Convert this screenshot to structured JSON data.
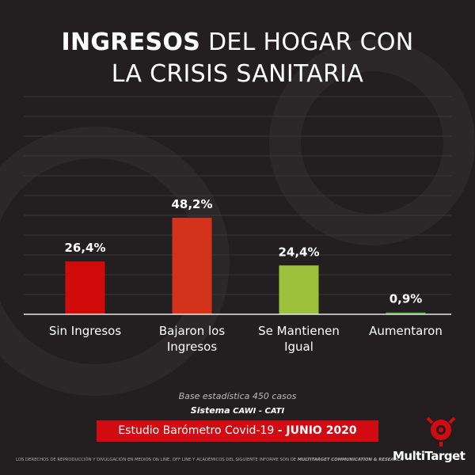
{
  "chart_data": {
    "type": "bar",
    "title_bold": "INGRESOS",
    "title": "DEL HOGAR CON LA CRISIS SANITARIA",
    "categories": [
      "Sin Ingresos",
      "Bajaron los Ingresos",
      "Se Mantienen Igual",
      "Aumentaron"
    ],
    "values": [
      26.4,
      48.2,
      24.4,
      0.9
    ],
    "value_labels": [
      "26,4%",
      "48,2%",
      "24,4%",
      "0,9%"
    ],
    "colors": [
      "#d10a0a",
      "#d4321a",
      "#9dc13b",
      "#3fae2a"
    ]
  },
  "footer": {
    "base": "Base estadística 450 casos",
    "system_label": "Sistema",
    "system": "CAWI - CATI",
    "study": "Estudio Barómetro Covid-19",
    "study_date": "- JUNIO 2020",
    "rights": "LOS DERECHOS DE REPRODUCCIÓN Y DIVULGACIÓN EN MEDIOS ON LINE, OFF LINE Y ACADÉMICOS DEL SIGUIENTE INFORME SON DE",
    "rights_owner": "MULTITARGET COMMUNICATION & RESEARCH",
    "logo": "MultiTarget"
  }
}
